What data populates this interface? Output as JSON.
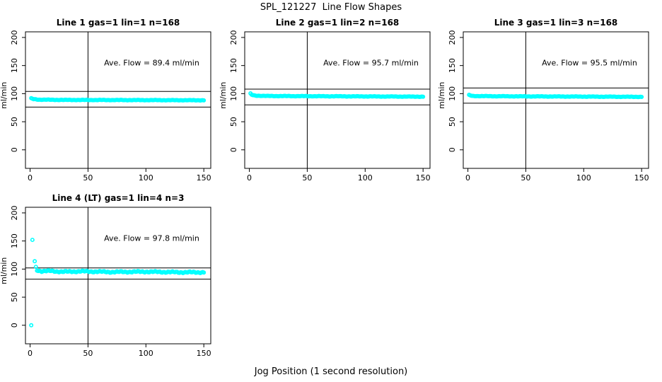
{
  "title": "SPL_121227  Line Flow Shapes",
  "xlabel": "Jog Position (1 second resolution)",
  "colors": {
    "marker": "#00ffff",
    "axis": "#000000",
    "background": "#ffffff"
  },
  "chart_data": [
    {
      "type": "scatter",
      "title": "Line 1 gas=1 lin=1 n=168",
      "annotation": "Ave. Flow =  89.4  ml/min",
      "ave_flow_ml_min": 89.4,
      "n": 168,
      "ylabel": "ml/min",
      "xticks": [
        0,
        50,
        100,
        150
      ],
      "yticks": [
        0,
        50,
        100,
        150,
        200
      ],
      "xlim": [
        -4,
        156
      ],
      "ylim": [
        -33,
        210
      ],
      "vline_x": 50,
      "hlines": [
        104,
        76
      ],
      "x_start": 1,
      "x_end": 150,
      "noise": 0.5,
      "series_keypoints": [
        [
          1,
          91.5
        ],
        [
          3,
          90.2
        ],
        [
          8,
          89.3
        ],
        [
          30,
          88.8
        ],
        [
          150,
          88.2
        ]
      ],
      "outliers": []
    },
    {
      "type": "scatter",
      "title": "Line 2 gas=1 lin=2 n=168",
      "annotation": "Ave. Flow =  95.7  ml/min",
      "ave_flow_ml_min": 95.7,
      "n": 168,
      "ylabel": "ml/min",
      "xticks": [
        0,
        50,
        100,
        150
      ],
      "yticks": [
        0,
        50,
        100,
        150,
        200
      ],
      "xlim": [
        -4,
        156
      ],
      "ylim": [
        -33,
        210
      ],
      "vline_x": 50,
      "hlines": [
        108,
        80
      ],
      "x_start": 1,
      "x_end": 150,
      "noise": 0.5,
      "series_keypoints": [
        [
          1,
          100
        ],
        [
          2,
          98
        ],
        [
          5,
          96.5
        ],
        [
          15,
          95.8
        ],
        [
          150,
          94.6
        ]
      ],
      "outliers": []
    },
    {
      "type": "scatter",
      "title": "Line 3 gas=1 lin=3 n=168",
      "annotation": "Ave. Flow =  95.5  ml/min",
      "ave_flow_ml_min": 95.5,
      "n": 168,
      "ylabel": "ml/min",
      "xticks": [
        0,
        50,
        100,
        150
      ],
      "yticks": [
        0,
        50,
        100,
        150,
        200
      ],
      "xlim": [
        -4,
        156
      ],
      "ylim": [
        -33,
        210
      ],
      "vline_x": 50,
      "hlines": [
        110,
        83
      ],
      "x_start": 1,
      "x_end": 150,
      "noise": 0.5,
      "series_keypoints": [
        [
          1,
          97.5
        ],
        [
          4,
          95.8
        ],
        [
          20,
          95.4
        ],
        [
          150,
          94.3
        ]
      ],
      "outliers": []
    },
    {
      "type": "scatter",
      "title": "Line 4 (LT) gas=1 lin=4 n=3",
      "annotation": "Ave. Flow =  97.8  ml/min",
      "ave_flow_ml_min": 97.8,
      "n": 3,
      "ylabel": "ml/min",
      "xticks": [
        0,
        50,
        100,
        150
      ],
      "yticks": [
        0,
        50,
        100,
        150,
        200
      ],
      "xlim": [
        -4,
        156
      ],
      "ylim": [
        -33,
        210
      ],
      "vline_x": 50,
      "hlines": [
        102,
        82
      ],
      "x_start": 6,
      "x_end": 150,
      "noise": 1.4,
      "series_keypoints": [
        [
          6,
          98
        ],
        [
          10,
          96.2
        ],
        [
          18,
          96.6
        ],
        [
          28,
          95.2
        ],
        [
          45,
          96
        ],
        [
          70,
          94.8
        ],
        [
          100,
          95.3
        ],
        [
          130,
          94.3
        ],
        [
          150,
          94.2
        ]
      ],
      "outliers": [
        [
          1,
          0
        ],
        [
          2,
          152
        ],
        [
          4,
          114
        ],
        [
          5,
          104
        ]
      ]
    }
  ]
}
